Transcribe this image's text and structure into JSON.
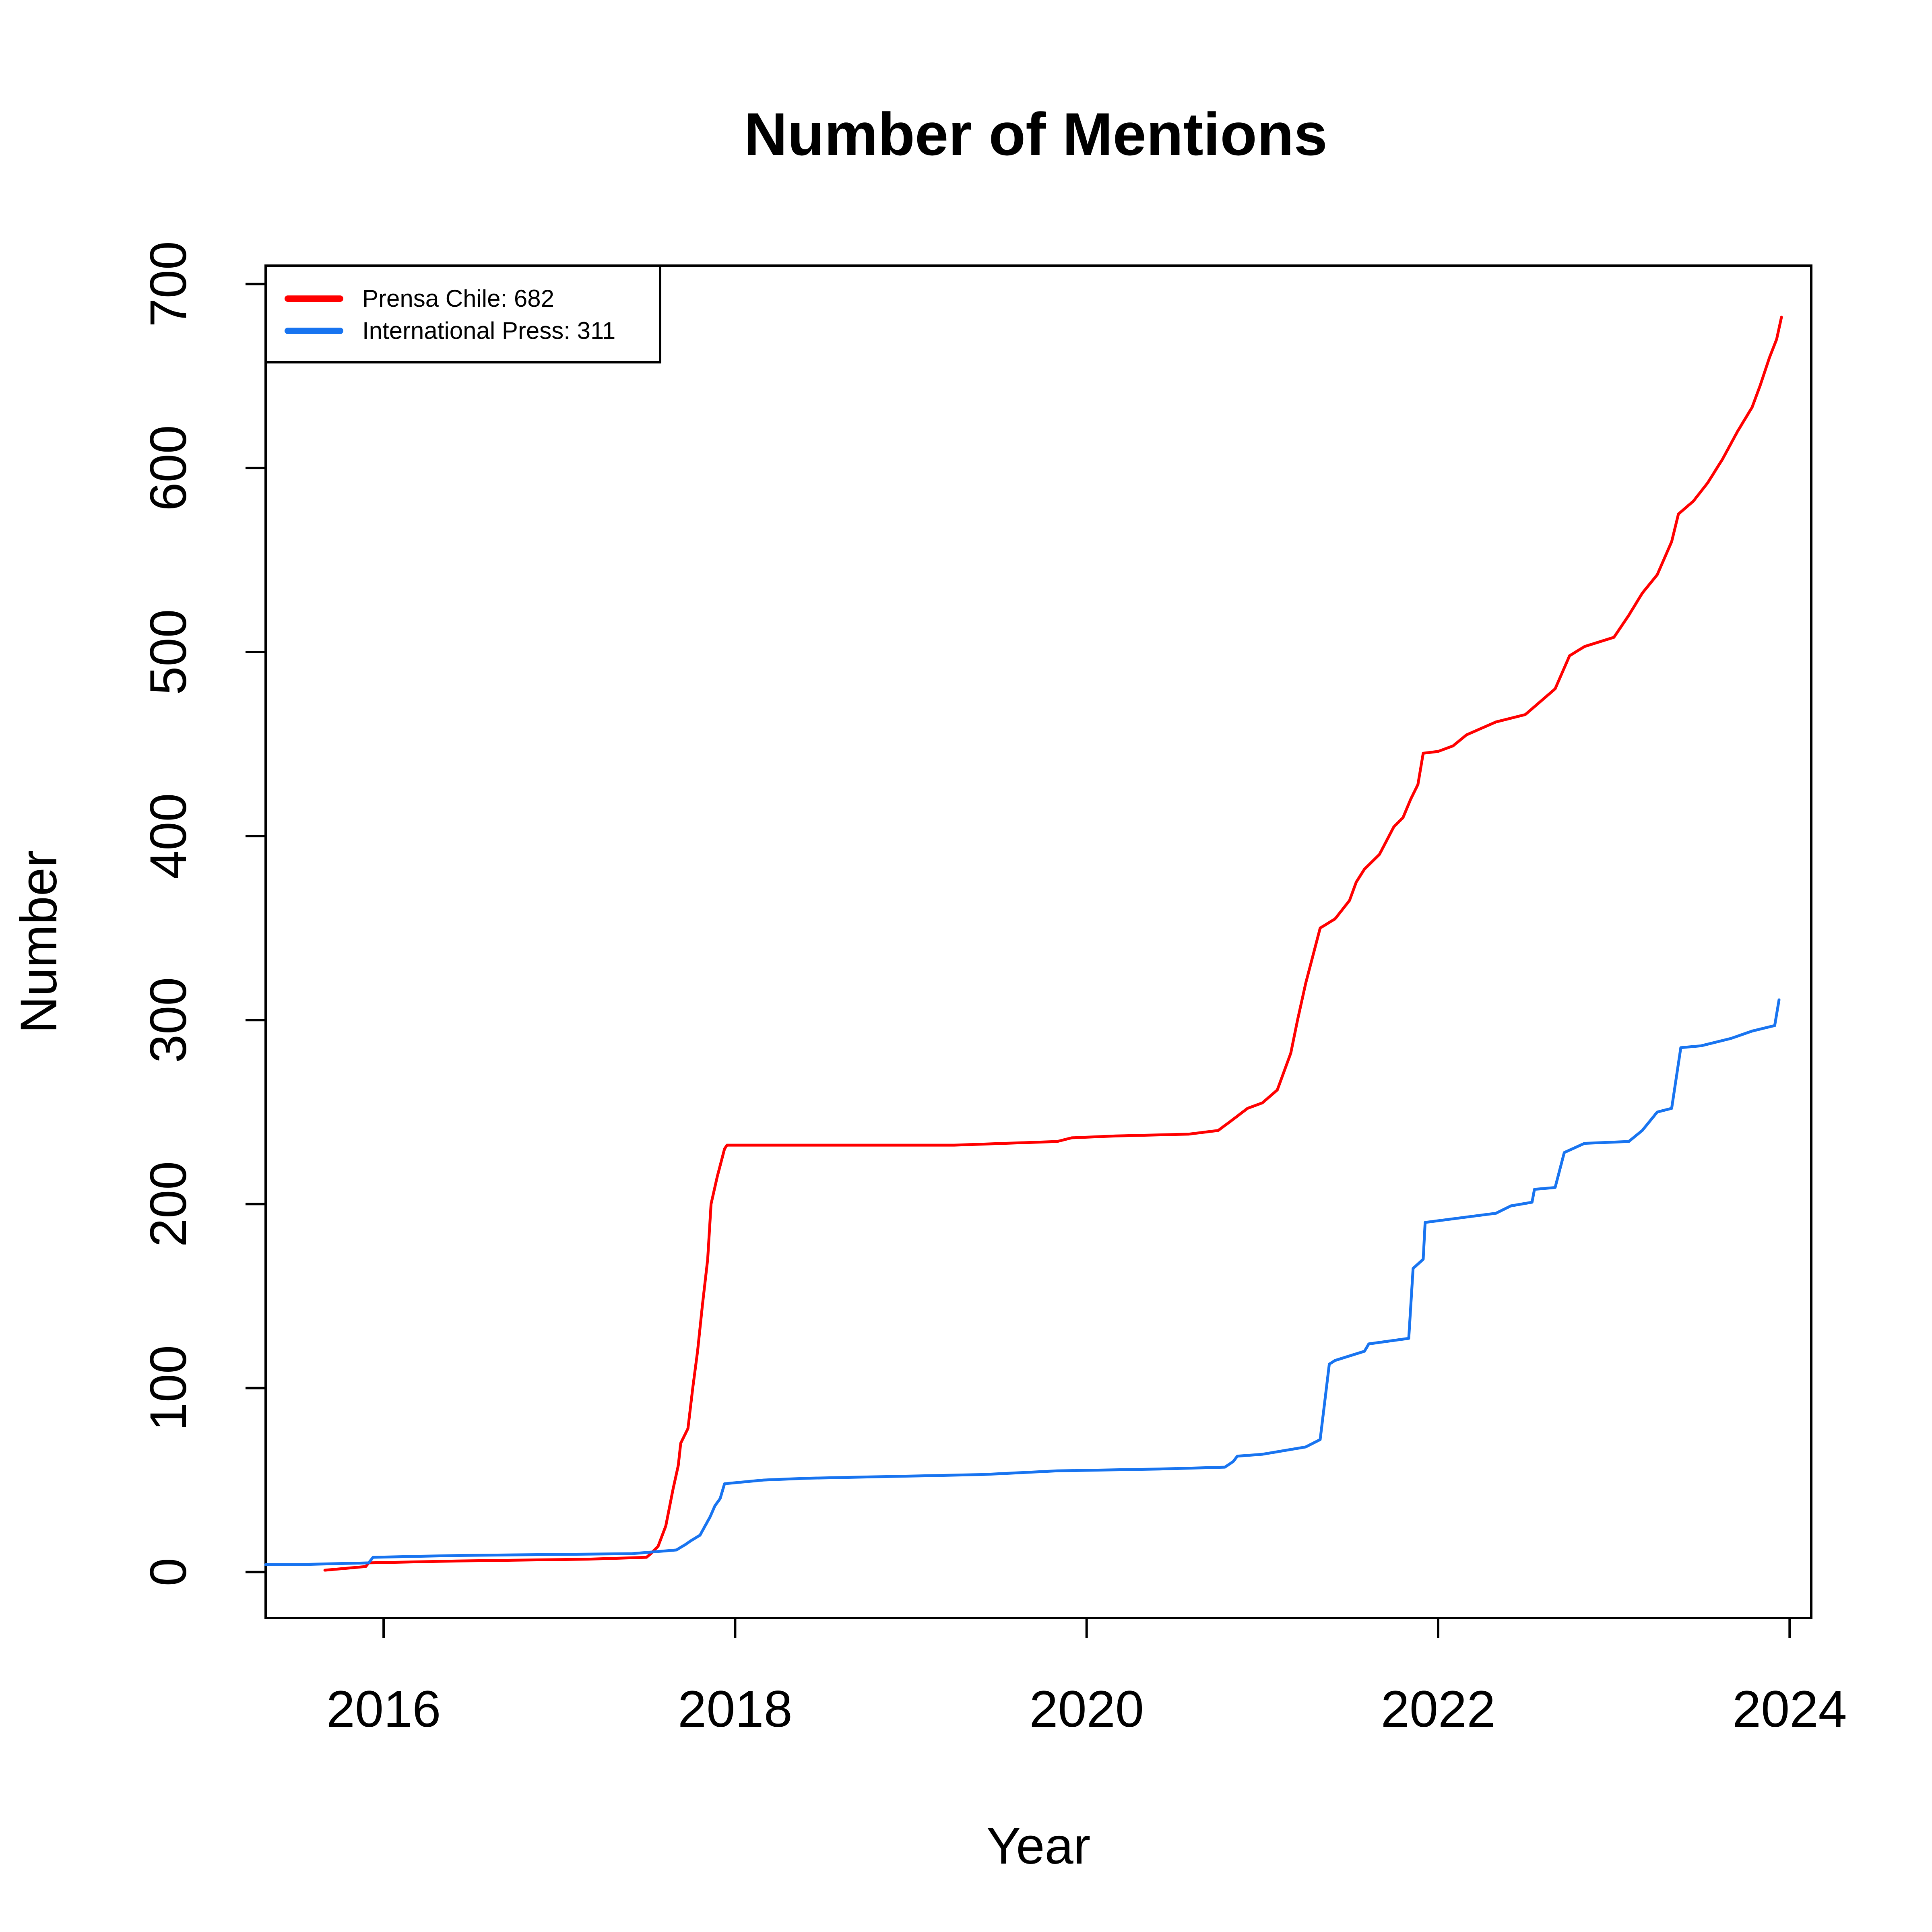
{
  "chart_data": {
    "type": "line",
    "title": "Number of Mentions",
    "xlabel": "Year",
    "ylabel": "Number",
    "xlim": [
      "2015-05-01",
      "2024-02-15"
    ],
    "ylim": [
      -25,
      710
    ],
    "x_ticks": [
      "2016",
      "2018",
      "2020",
      "2022",
      "2024"
    ],
    "y_ticks": [
      "0",
      "100",
      "200",
      "300",
      "400",
      "500",
      "600",
      "700"
    ],
    "grid": false,
    "legend_position": "top-left",
    "legend": [
      {
        "label": "Prensa Chile: 682",
        "color": "#FF0000"
      },
      {
        "label": "International Press: 311",
        "color": "#1874F0"
      }
    ],
    "series": [
      {
        "color": "#FF0000",
        "points": [
          [
            "2015-09-01",
            1
          ],
          [
            "2015-11-25",
            3
          ],
          [
            "2015-12-01",
            5
          ],
          [
            "2016-06-01",
            6
          ],
          [
            "2017-03-01",
            7
          ],
          [
            "2017-07-01",
            8
          ],
          [
            "2017-07-10",
            10
          ],
          [
            "2017-07-25",
            14
          ],
          [
            "2017-08-10",
            25
          ],
          [
            "2017-08-25",
            45
          ],
          [
            "2017-09-05",
            58
          ],
          [
            "2017-09-10",
            70
          ],
          [
            "2017-09-25",
            78
          ],
          [
            "2017-10-05",
            100
          ],
          [
            "2017-10-15",
            120
          ],
          [
            "2017-10-25",
            145
          ],
          [
            "2017-11-05",
            170
          ],
          [
            "2017-11-12",
            200
          ],
          [
            "2017-11-25",
            215
          ],
          [
            "2017-12-10",
            230
          ],
          [
            "2017-12-15",
            232
          ],
          [
            "2018-06-01",
            232
          ],
          [
            "2019-04-01",
            232
          ],
          [
            "2019-11-01",
            234
          ],
          [
            "2019-12-01",
            236
          ],
          [
            "2020-03-01",
            237
          ],
          [
            "2020-08-01",
            238
          ],
          [
            "2020-10-01",
            240
          ],
          [
            "2020-11-01",
            246
          ],
          [
            "2020-12-01",
            252
          ],
          [
            "2021-01-01",
            255
          ],
          [
            "2021-02-01",
            262
          ],
          [
            "2021-03-01",
            282
          ],
          [
            "2021-03-15",
            300
          ],
          [
            "2021-04-01",
            320
          ],
          [
            "2021-05-01",
            350
          ],
          [
            "2021-06-01",
            355
          ],
          [
            "2021-07-01",
            365
          ],
          [
            "2021-07-15",
            375
          ],
          [
            "2021-08-01",
            382
          ],
          [
            "2021-09-01",
            390
          ],
          [
            "2021-10-01",
            405
          ],
          [
            "2021-10-20",
            410
          ],
          [
            "2021-11-05",
            420
          ],
          [
            "2021-11-20",
            428
          ],
          [
            "2021-12-01",
            445
          ],
          [
            "2022-01-01",
            446
          ],
          [
            "2022-02-01",
            449
          ],
          [
            "2022-03-01",
            455
          ],
          [
            "2022-05-01",
            462
          ],
          [
            "2022-07-01",
            466
          ],
          [
            "2022-09-01",
            480
          ],
          [
            "2022-10-01",
            498
          ],
          [
            "2022-11-01",
            503
          ],
          [
            "2023-01-01",
            508
          ],
          [
            "2023-02-01",
            520
          ],
          [
            "2023-03-01",
            532
          ],
          [
            "2023-04-01",
            542
          ],
          [
            "2023-05-01",
            560
          ],
          [
            "2023-05-15",
            575
          ],
          [
            "2023-06-15",
            582
          ],
          [
            "2023-07-15",
            592
          ],
          [
            "2023-08-15",
            605
          ],
          [
            "2023-09-15",
            620
          ],
          [
            "2023-10-15",
            633
          ],
          [
            "2023-11-01",
            645
          ],
          [
            "2023-11-20",
            660
          ],
          [
            "2023-12-05",
            670
          ],
          [
            "2023-12-15",
            682
          ]
        ]
      },
      {
        "color": "#1874F0",
        "points": [
          [
            "2015-05-01",
            4
          ],
          [
            "2015-07-01",
            4
          ],
          [
            "2015-12-01",
            5
          ],
          [
            "2015-12-10",
            8
          ],
          [
            "2016-06-01",
            9
          ],
          [
            "2017-06-01",
            10
          ],
          [
            "2017-09-01",
            12
          ],
          [
            "2017-09-20",
            15
          ],
          [
            "2017-10-01",
            17
          ],
          [
            "2017-10-20",
            20
          ],
          [
            "2017-11-10",
            30
          ],
          [
            "2017-11-20",
            36
          ],
          [
            "2017-12-01",
            40
          ],
          [
            "2017-12-10",
            48
          ],
          [
            "2018-03-01",
            50
          ],
          [
            "2018-06-01",
            51
          ],
          [
            "2019-06-01",
            53
          ],
          [
            "2019-11-01",
            55
          ],
          [
            "2020-06-01",
            56
          ],
          [
            "2020-10-15",
            57
          ],
          [
            "2020-11-01",
            60
          ],
          [
            "2020-11-10",
            63
          ],
          [
            "2021-01-01",
            64
          ],
          [
            "2021-04-01",
            68
          ],
          [
            "2021-05-01",
            72
          ],
          [
            "2021-05-20",
            113
          ],
          [
            "2021-06-01",
            115
          ],
          [
            "2021-08-01",
            120
          ],
          [
            "2021-08-10",
            124
          ],
          [
            "2021-11-01",
            127
          ],
          [
            "2021-11-10",
            165
          ],
          [
            "2021-12-01",
            170
          ],
          [
            "2021-12-05",
            190
          ],
          [
            "2022-05-01",
            195
          ],
          [
            "2022-06-01",
            199
          ],
          [
            "2022-07-15",
            201
          ],
          [
            "2022-07-20",
            208
          ],
          [
            "2022-09-01",
            209
          ],
          [
            "2022-09-20",
            228
          ],
          [
            "2022-11-01",
            233
          ],
          [
            "2023-02-01",
            234
          ],
          [
            "2023-03-01",
            240
          ],
          [
            "2023-04-01",
            250
          ],
          [
            "2023-05-01",
            252
          ],
          [
            "2023-05-20",
            285
          ],
          [
            "2023-07-01",
            286
          ],
          [
            "2023-09-01",
            290
          ],
          [
            "2023-10-15",
            294
          ],
          [
            "2023-11-15",
            296
          ],
          [
            "2023-12-01",
            297
          ],
          [
            "2023-12-10",
            311
          ]
        ]
      }
    ]
  }
}
